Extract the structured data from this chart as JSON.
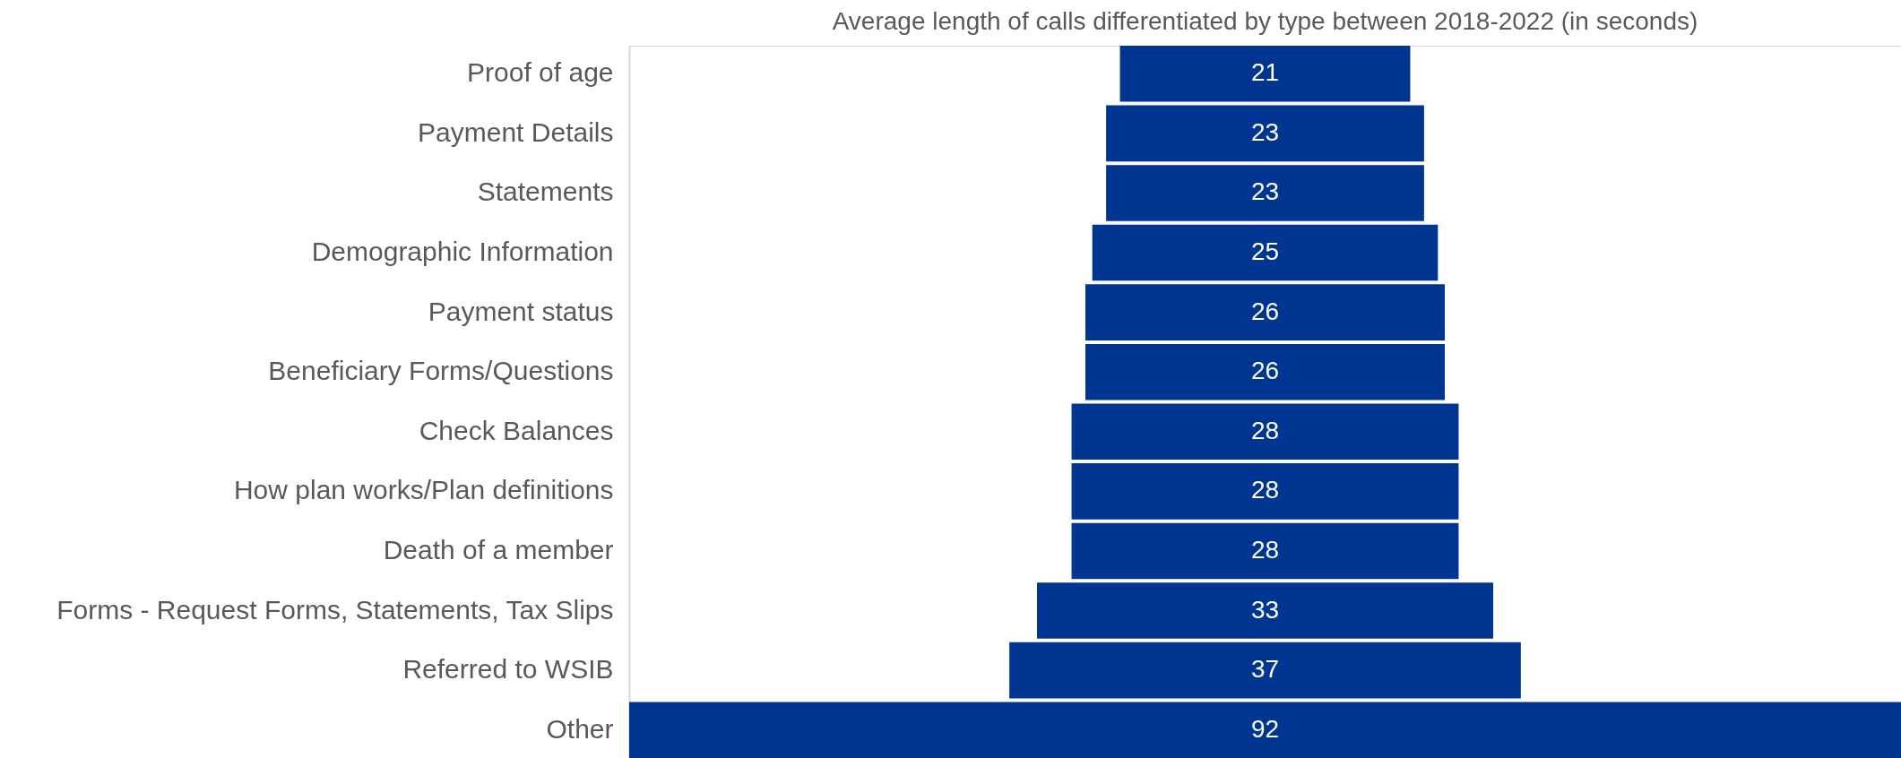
{
  "chart_data": {
    "type": "other",
    "title": "Average length of calls differentiated by type between 2018-2022 (in seconds)",
    "categories": [
      "Proof of age",
      "Payment Details",
      "Statements",
      "Demographic Information",
      "Payment status",
      "Beneficiary Forms/Questions",
      "Check Balances",
      "How plan works/Plan definitions",
      "Death of a member",
      "Forms - Request Forms, Statements, Tax Slips",
      "Referred to WSIB",
      "Other"
    ],
    "values": [
      21,
      23,
      23,
      25,
      26,
      26,
      28,
      28,
      28,
      33,
      37,
      92
    ],
    "color": "#003591",
    "data_labels": true
  }
}
